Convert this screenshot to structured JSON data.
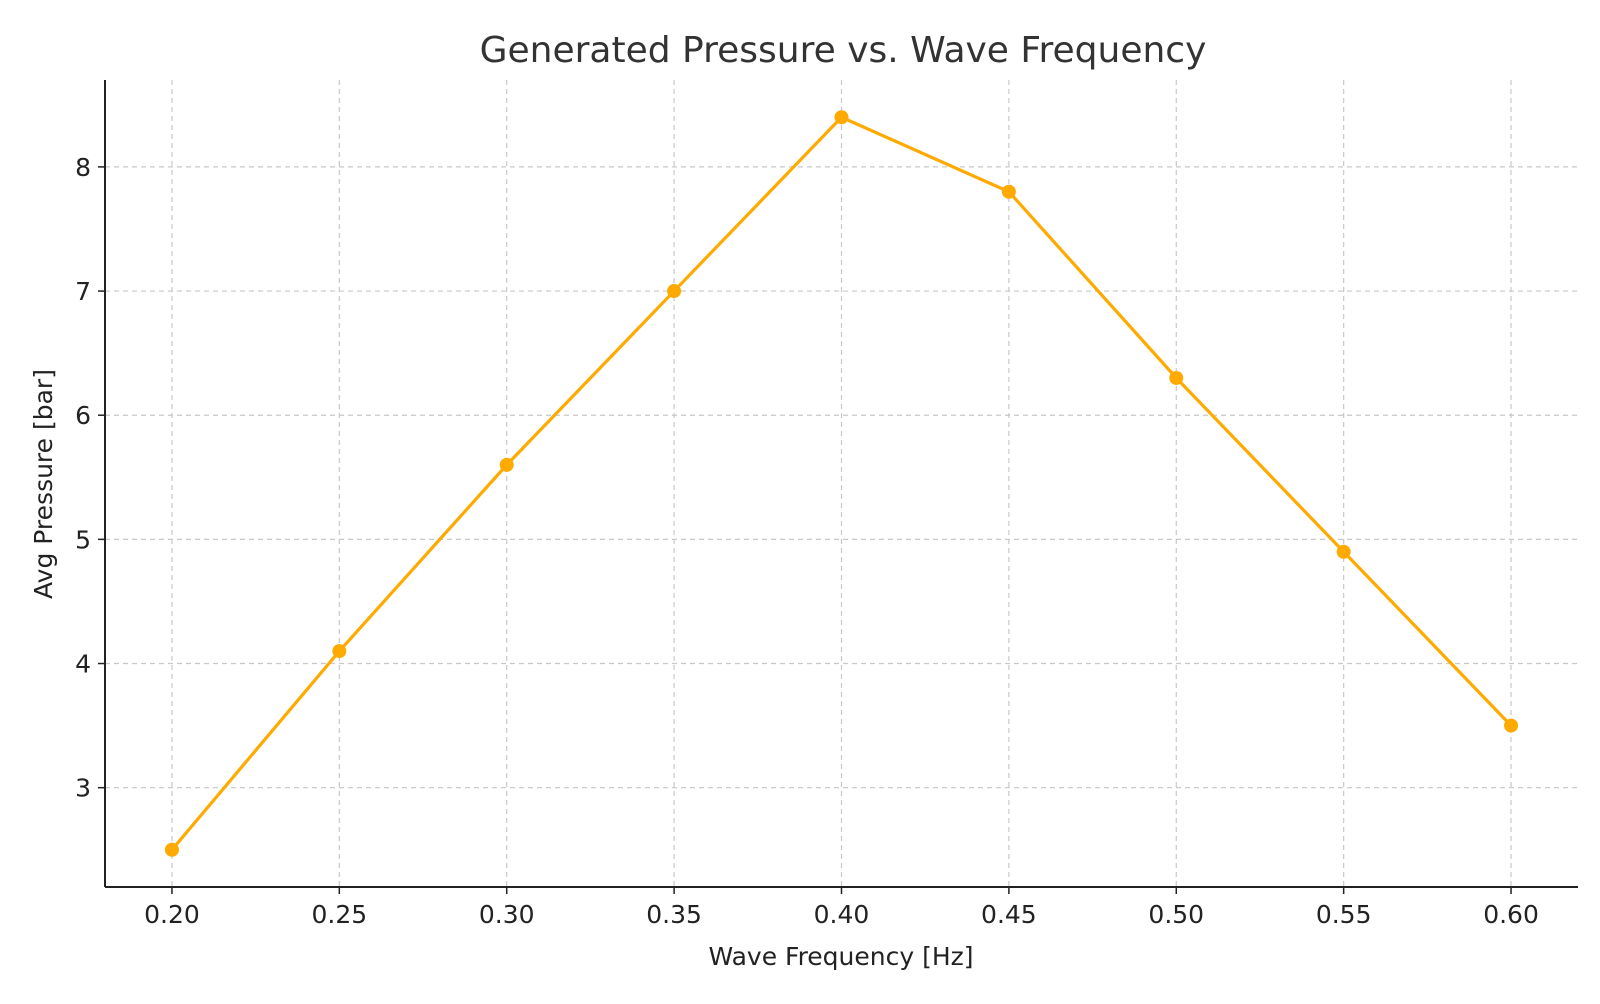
{
  "chart_data": {
    "type": "line",
    "title": "Generated Pressure vs. Wave Frequency",
    "xlabel": "Wave Frequency [Hz]",
    "ylabel": "Avg Pressure [bar]",
    "x": [
      0.2,
      0.25,
      0.3,
      0.35,
      0.4,
      0.45,
      0.5,
      0.55,
      0.6
    ],
    "x_tick_labels": [
      "0.20",
      "0.25",
      "0.30",
      "0.35",
      "0.40",
      "0.45",
      "0.50",
      "0.55",
      "0.60"
    ],
    "y_ticks": [
      3,
      4,
      5,
      6,
      7,
      8
    ],
    "y_tick_labels": [
      "3",
      "4",
      "5",
      "6",
      "7",
      "8"
    ],
    "xlim": [
      0.18,
      0.62
    ],
    "ylim": [
      2.2,
      8.7
    ],
    "grid": true,
    "grid_style": "dashed",
    "series": [
      {
        "color": "#FFAA00",
        "marker": "circle",
        "values": [
          2.5,
          4.1,
          5.6,
          7.0,
          8.4,
          7.8,
          6.3,
          4.9,
          3.5
        ]
      }
    ],
    "colors": {
      "line": "#FFAA00",
      "grid": "#c8c8c8",
      "axis": "#222222",
      "title": "#333333"
    }
  }
}
